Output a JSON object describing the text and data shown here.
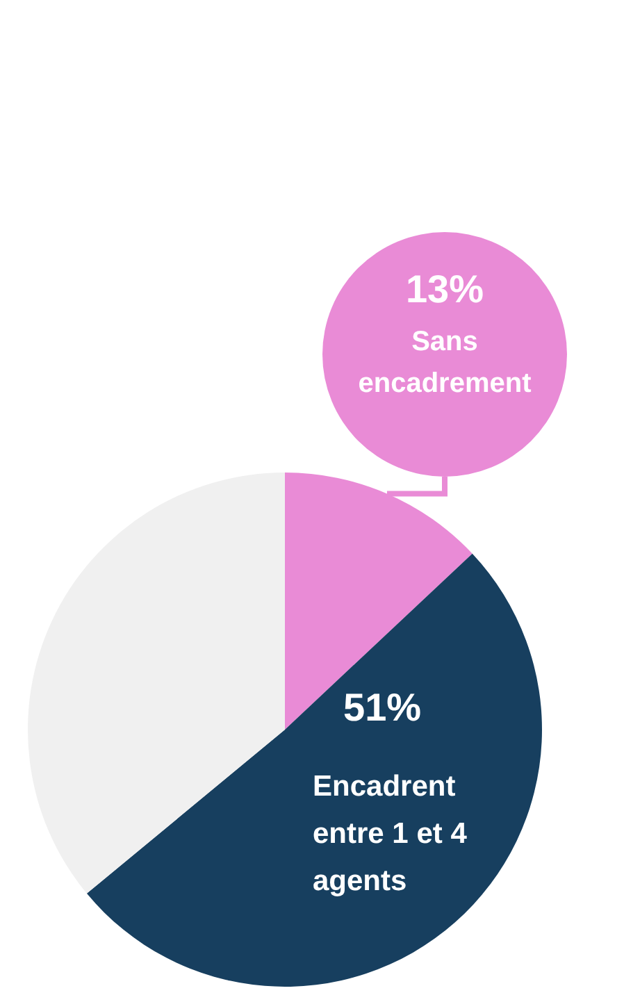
{
  "chart_data": {
    "type": "pie",
    "categories": [
      "Sans encadrement",
      "Encadrent entre 1 et 4 agents",
      null
    ],
    "values": [
      13,
      51,
      36
    ],
    "colors": [
      "#e98bd6",
      "#173f5f",
      "#f0f0f0"
    ],
    "value_labels": [
      "13%",
      "51%",
      null
    ]
  }
}
